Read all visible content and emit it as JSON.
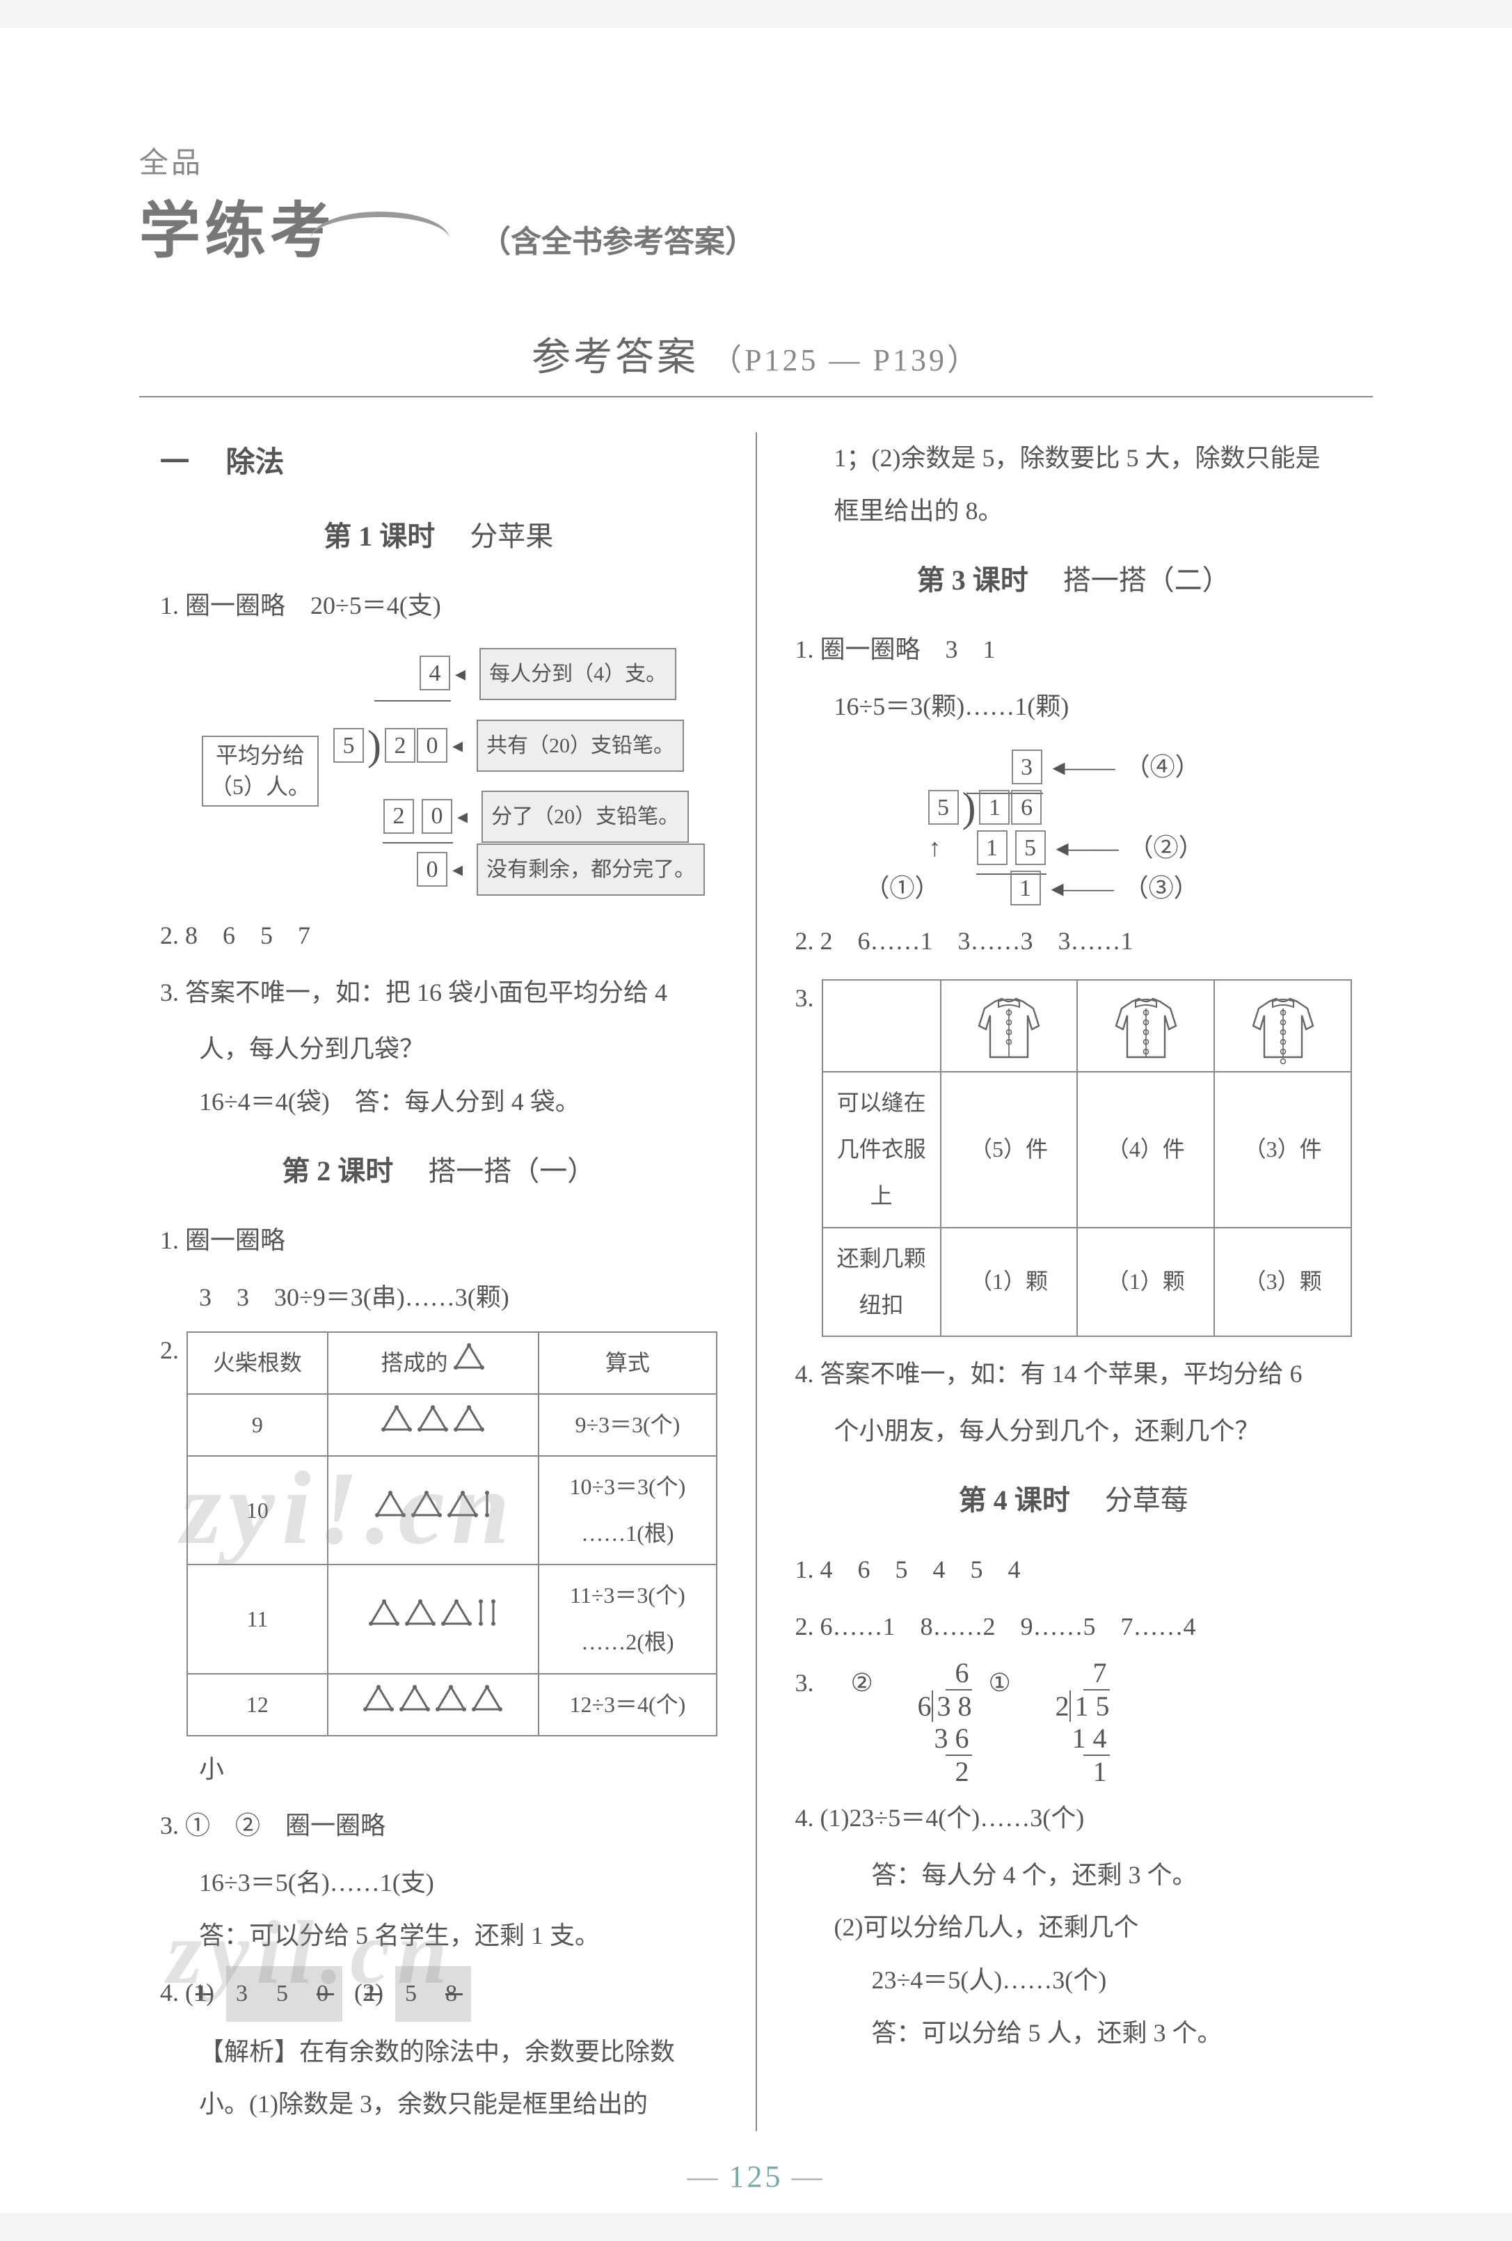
{
  "logo": {
    "top": "全品",
    "main": "学练考",
    "sub": "（含全书参考答案）"
  },
  "section_title": "参考答案",
  "page_range": "（P125 — P139）",
  "chapter": {
    "num": "一",
    "title": "除法"
  },
  "lessons": {
    "l1": {
      "label": "第 1 课时",
      "title": "分苹果"
    },
    "l2": {
      "label": "第 2 课时",
      "title": "搭一搭（一）"
    },
    "l3": {
      "label": "第 3 课时",
      "title": "搭一搭（二）"
    },
    "l4": {
      "label": "第 4 课时",
      "title": "分草莓"
    }
  },
  "left": {
    "q1": "1. 圈一圈略　20÷5＝4(支)",
    "diagram1": {
      "left_label_l1": "平均分给",
      "left_label_l2": "（5）人。",
      "divisor": "5",
      "dividend_d1": "2",
      "dividend_d2": "0",
      "quotient": "4",
      "sub_d1": "2",
      "sub_d2": "0",
      "rem": "0",
      "ann_q": "每人分到（4）支。",
      "ann_dividend": "共有（20）支铅笔。",
      "ann_sub": "分了（20）支铅笔。",
      "ann_rem": "没有剩余，都分完了。"
    },
    "q2": "2. 8　6　5　7",
    "q3_l1": "3. 答案不唯一，如：把 16 袋小面包平均分给 4",
    "q3_l2": "人，每人分到几袋？",
    "q3_l3": "16÷4＝4(袋)　答：每人分到 4 袋。",
    "l2_q1": "1. 圈一圈略",
    "l2_q1b": "3　3　30÷9＝3(串)……3(颗)",
    "table2": {
      "h1": "火柴根数",
      "h2": "搭成的",
      "h3": "算式",
      "rows": [
        {
          "n": "9",
          "tri": 3,
          "extra": 0,
          "expr": "9÷3＝3(个)"
        },
        {
          "n": "10",
          "tri": 3,
          "extra": 1,
          "expr": "10÷3＝3(个)\n……1(根)"
        },
        {
          "n": "11",
          "tri": 3,
          "extra": 2,
          "expr": "11÷3＝3(个)\n……2(根)"
        },
        {
          "n": "12",
          "tri": 4,
          "extra": 0,
          "expr": "12÷3＝4(个)"
        }
      ]
    },
    "l2_small": "小",
    "l2_q3_l1": "3. ①　②　圈一圈略",
    "l2_q3_l2": "16÷3＝5(名)……1(支)",
    "l2_q3_l3": "答：可以分给 5 名学生，还剩 1 支。",
    "l2_q4_label": "4.",
    "l2_q4_b1_pre": "(1)",
    "l2_q4_b1": "1̸  3  5  0̸",
    "l2_q4_b2_pre": "(2)",
    "l2_q4_b2": "1̸  5  8̸",
    "l2_q4_analysis_l1": "【解析】在有余数的除法中，余数要比除数",
    "l2_q4_analysis_l2": "小。(1)除数是 3，余数只能是框里给出的"
  },
  "right": {
    "cont_l1": "1；(2)余数是 5，除数要比 5 大，除数只能是",
    "cont_l2": "框里给出的 8。",
    "l3_q1": "1. 圈一圈略　3　1",
    "l3_q1b": "16÷5＝3(颗)……1(颗)",
    "diagram2": {
      "divisor": "5",
      "d1": "1",
      "d2": "6",
      "quot": "3",
      "sub1": "1",
      "sub2": "5",
      "rem": "1",
      "ann_quot": "（④）",
      "ann_sub": "（②）",
      "ann_rem": "（③）",
      "ann_divisor": "（①）"
    },
    "l3_q2": "2. 2　6……1　3……3　3……1",
    "table3": {
      "row1_label": "可以缝在几件衣服上",
      "row2_label": "还剩几颗纽扣",
      "cells": [
        {
          "buttons": 4,
          "r1": "（5）件",
          "r2": "（1）颗"
        },
        {
          "buttons": 5,
          "r1": "（4）件",
          "r2": "（1）颗"
        },
        {
          "buttons": 6,
          "r1": "（3）件",
          "r2": "（3）颗"
        }
      ]
    },
    "l3_q4_l1": "4. 答案不唯一，如：有 14 个苹果，平均分给 6",
    "l3_q4_l2": "个小朋友，每人分到几个，还剩几个？",
    "l4_q1": "1. 4　6　5　4　5　4",
    "l4_q2": "2. 6……1　8……2　9……5　7……4",
    "l4_q3_label": "3.",
    "l4_q3_a": {
      "tag": "②",
      "divisor": "6",
      "dividend": "3 8",
      "quot": "6",
      "sub": "3 6",
      "rem": "2"
    },
    "l4_q3_b": {
      "tag": "①",
      "divisor": "2",
      "dividend": "1 5",
      "quot": "7",
      "sub": "1 4",
      "rem": "1"
    },
    "l4_q4_l1": "4. (1)23÷5＝4(个)……3(个)",
    "l4_q4_l2": "答：每人分 4 个，还剩 3 个。",
    "l4_q4_l3": "(2)可以分给几人，还剩几个",
    "l4_q4_l4": "23÷4＝5(人)……3(个)",
    "l4_q4_l5": "答：可以分给 5 人，还剩 3 个。"
  },
  "q3_label": "3.",
  "page_number": "125",
  "colors": {
    "text": "#555555",
    "border": "#888888",
    "shade": "#e0e0e0",
    "accent": "#77aaaa"
  },
  "triangle_stroke": "#666666",
  "watermark_text1": "zyi!.cn",
  "watermark_text2": "zyil.cn"
}
